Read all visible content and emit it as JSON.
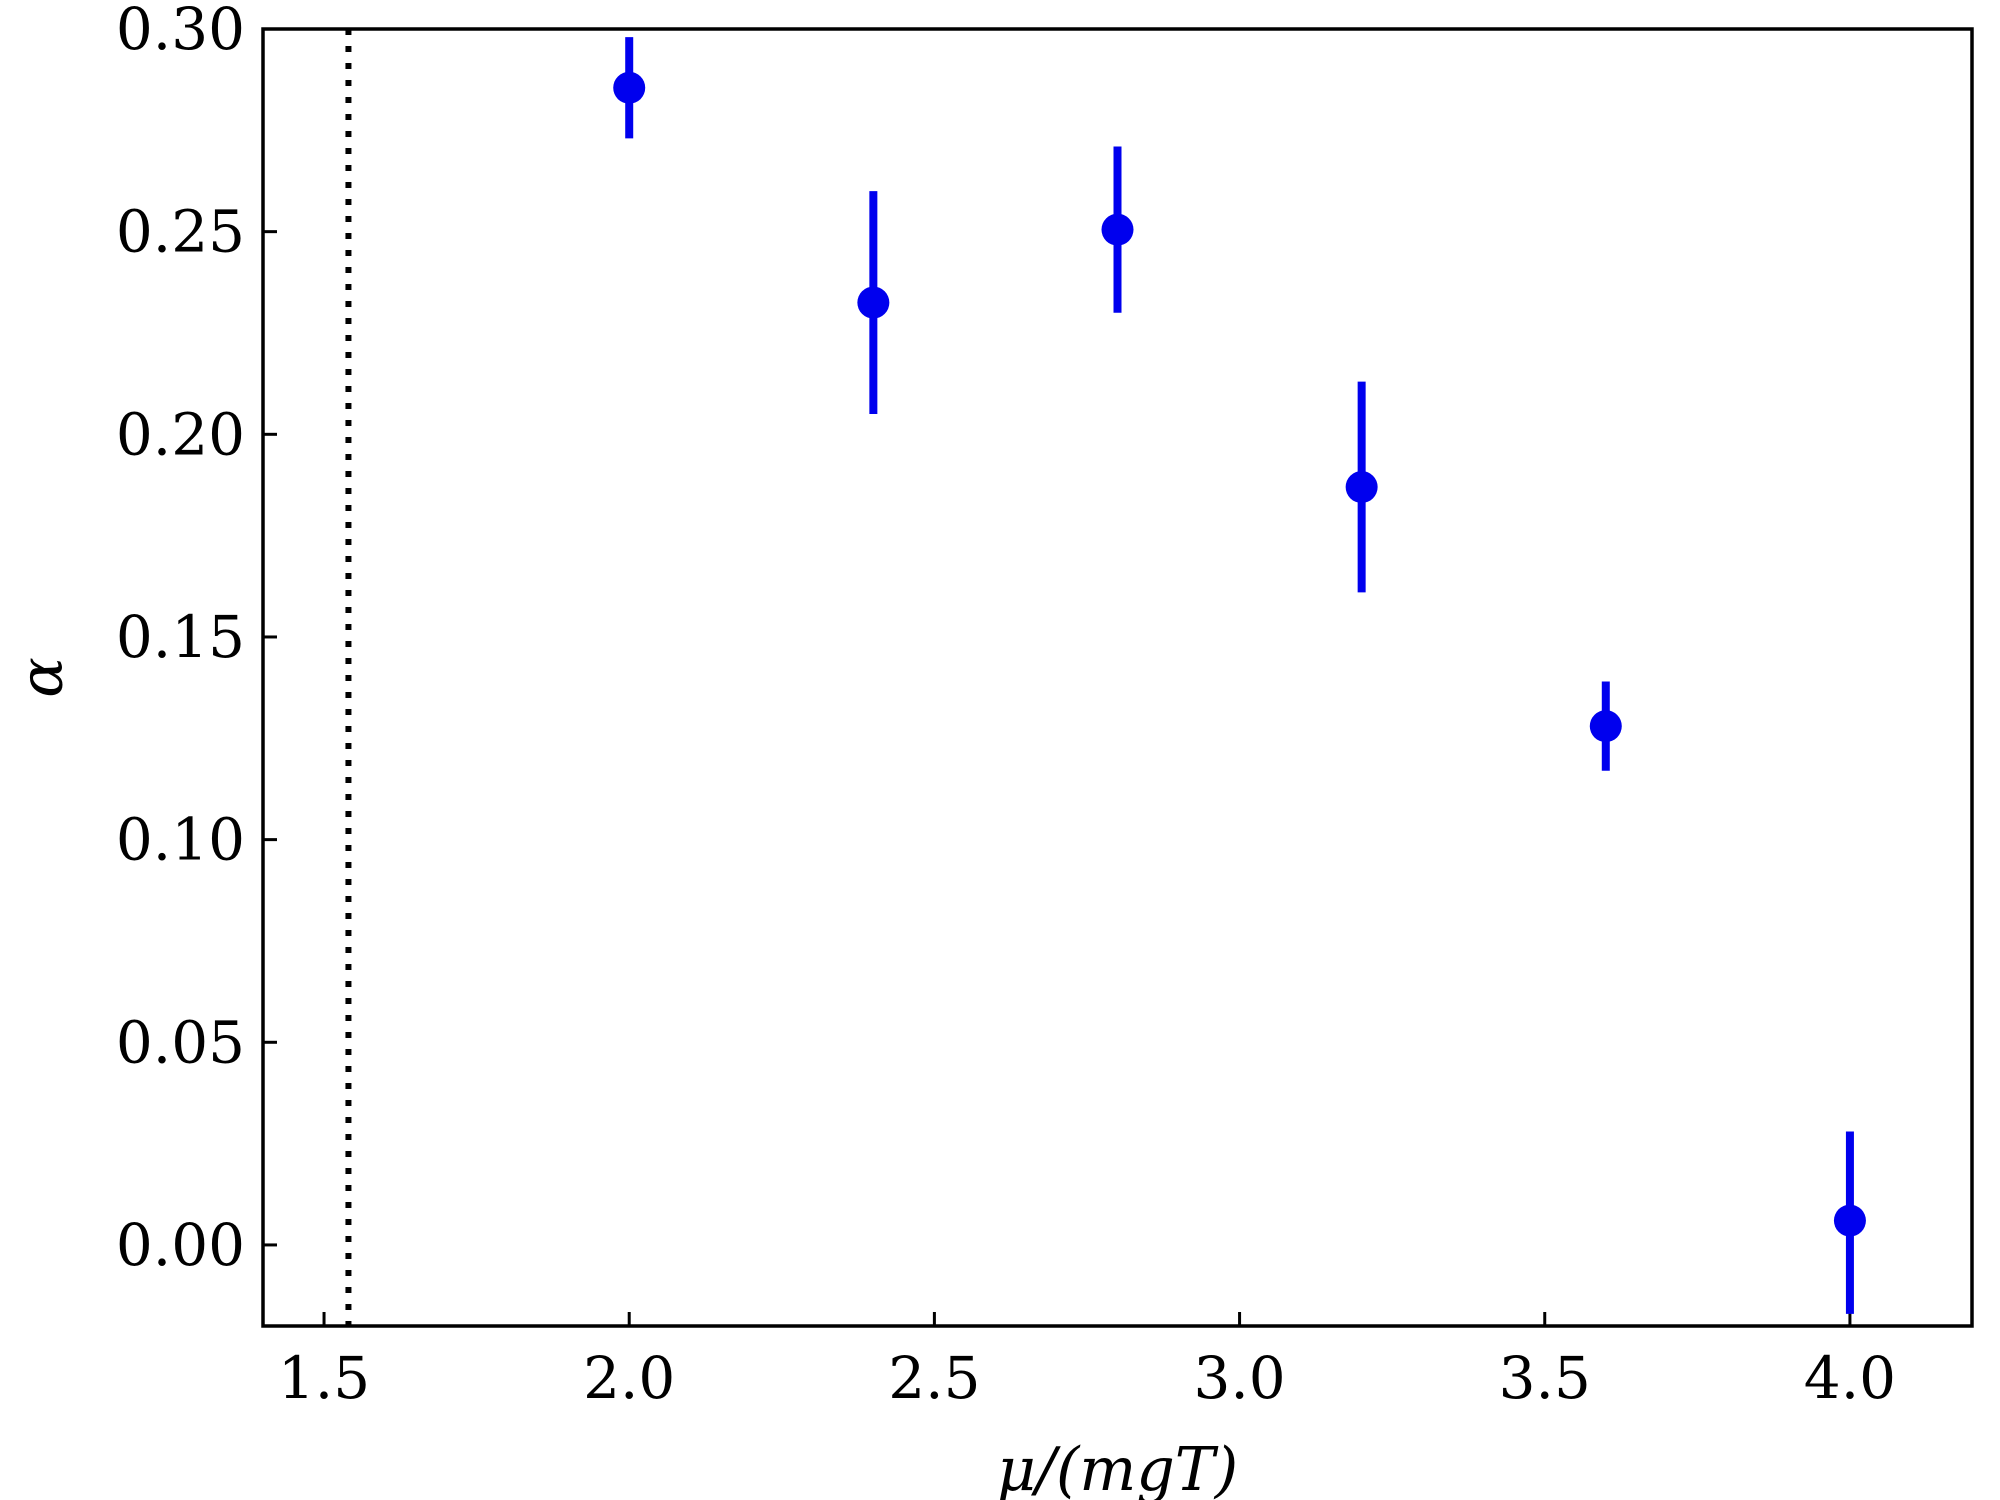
{
  "chart_data": {
    "type": "scatter",
    "xlabel": "μ/(mgT)",
    "ylabel": "α",
    "xlim": [
      1.4,
      4.2
    ],
    "ylim": [
      -0.02,
      0.3
    ],
    "x_ticks": [
      1.5,
      2.0,
      2.5,
      3.0,
      3.5,
      4.0
    ],
    "x_tick_labels": [
      "1.5",
      "2.0",
      "2.5",
      "3.0",
      "3.5",
      "4.0"
    ],
    "y_ticks": [
      0.0,
      0.05,
      0.1,
      0.15,
      0.2,
      0.25,
      0.3
    ],
    "y_tick_labels": [
      "0.00",
      "0.05",
      "0.10",
      "0.15",
      "0.20",
      "0.25",
      "0.30"
    ],
    "grid": false,
    "reference_line": {
      "orientation": "vertical",
      "x": 1.54,
      "style": "dotted",
      "color": "#000000"
    },
    "series": [
      {
        "color": "#0000ee",
        "marker": "circle",
        "points": [
          {
            "x": 2.0,
            "y": 0.2855,
            "yerr_low": 0.273,
            "yerr_high": 0.298
          },
          {
            "x": 2.4,
            "y": 0.2325,
            "yerr_low": 0.205,
            "yerr_high": 0.26
          },
          {
            "x": 2.8,
            "y": 0.2505,
            "yerr_low": 0.23,
            "yerr_high": 0.271
          },
          {
            "x": 3.2,
            "y": 0.187,
            "yerr_low": 0.161,
            "yerr_high": 0.213
          },
          {
            "x": 3.6,
            "y": 0.128,
            "yerr_low": 0.117,
            "yerr_high": 0.139
          },
          {
            "x": 4.0,
            "y": 0.006,
            "yerr_low": -0.017,
            "yerr_high": 0.028
          }
        ]
      }
    ]
  }
}
